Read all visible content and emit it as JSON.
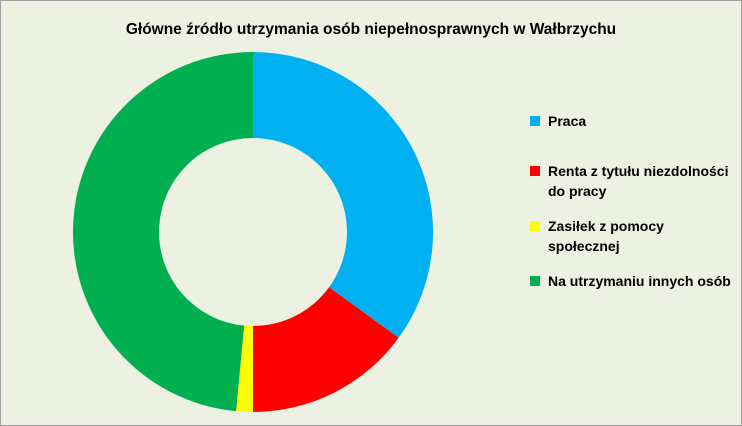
{
  "chart_data": {
    "type": "donut",
    "title": "Główne źródło utrzymania osób niepełnosprawnych w Wałbrzychu",
    "categories": [
      "Praca",
      "Renta z tytułu niezdolności do pracy",
      "Zasiłek z pomocy społecznej",
      "Na utrzymaniu innych osób"
    ],
    "values": [
      35,
      15,
      1.5,
      48.5
    ],
    "colors": [
      "#00b0f0",
      "#ff0000",
      "#ffff00",
      "#00b050"
    ],
    "legend": "right"
  }
}
